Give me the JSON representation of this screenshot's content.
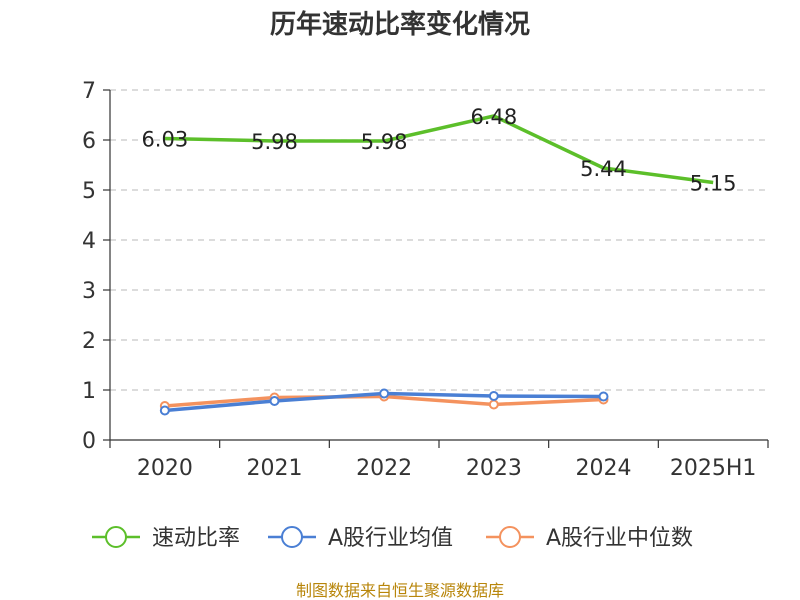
{
  "chart_data": {
    "type": "line",
    "title": "历年速动比率变化情况",
    "categories": [
      "2020",
      "2021",
      "2022",
      "2023",
      "2024",
      "2025H1"
    ],
    "ylim": [
      0,
      7
    ],
    "yticks": [
      "0",
      "1",
      "2",
      "3",
      "4",
      "5",
      "6",
      "7"
    ],
    "grid": true,
    "legend_position": "bottom",
    "series": [
      {
        "name": "速动比率",
        "color": "#5cbf2a",
        "values": [
          6.03,
          5.98,
          5.98,
          6.48,
          5.44,
          5.15
        ],
        "labels": [
          "6.03",
          "5.98",
          "5.98",
          "6.48",
          "5.44",
          "5.15"
        ]
      },
      {
        "name": "A股行业均值",
        "color": "#4a7fd4",
        "values": [
          0.59,
          0.78,
          0.93,
          0.88,
          0.87,
          null
        ]
      },
      {
        "name": "A股行业中位数",
        "color": "#f4925e",
        "values": [
          0.68,
          0.85,
          0.87,
          0.71,
          0.81,
          null
        ]
      }
    ],
    "source": "制图数据来自恒生聚源数据库"
  }
}
